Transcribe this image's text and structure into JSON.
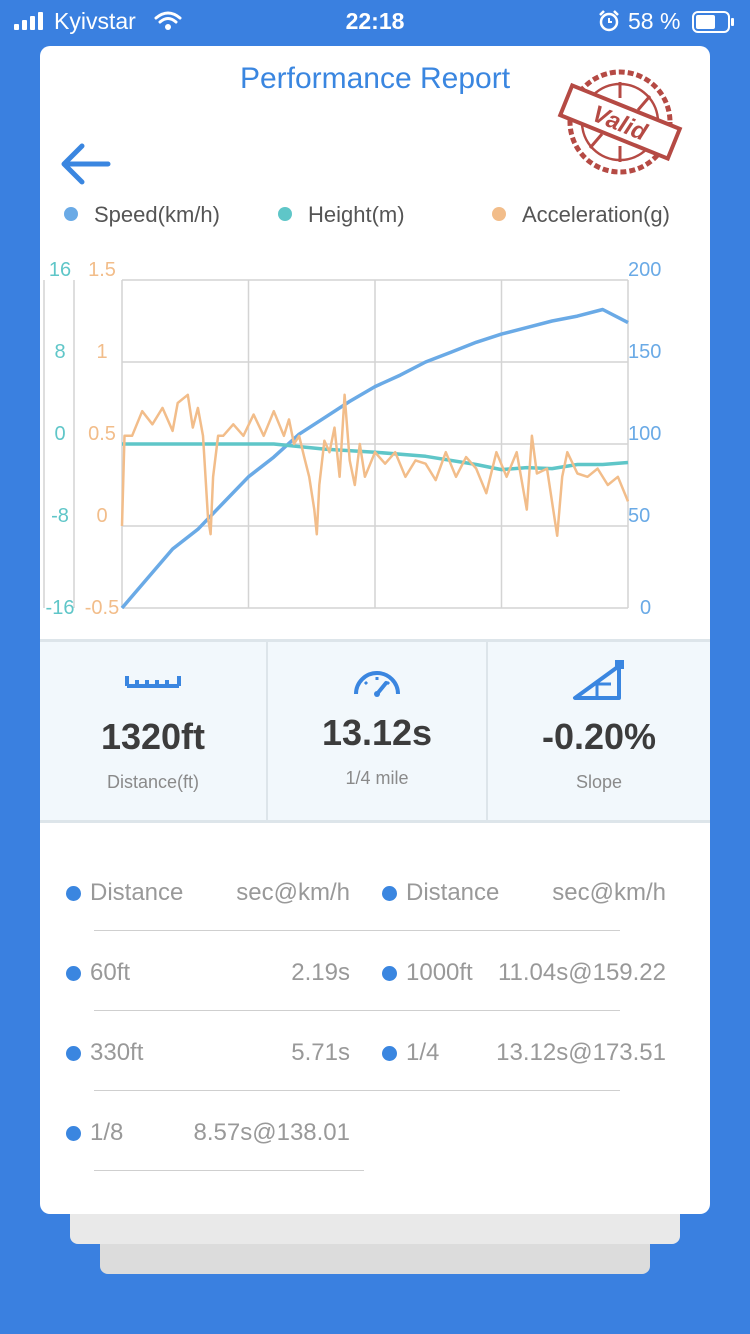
{
  "status_bar": {
    "carrier": "Kyivstar",
    "time": "22:18",
    "battery_percent": "58 %"
  },
  "title": "Performance Report",
  "stamp_text": "Valid",
  "legend": [
    {
      "label": "Speed(km/h)",
      "color": "#6aaae6"
    },
    {
      "label": "Height(m)",
      "color": "#5fc6c8"
    },
    {
      "label": "Acceleration(g)",
      "color": "#f2bd8a"
    }
  ],
  "chart_data": {
    "type": "line",
    "x_range": [
      0,
      100
    ],
    "axes": {
      "height": {
        "ticks": [
          "16",
          "8",
          "0",
          "-8",
          "-16"
        ],
        "range": [
          -16,
          16
        ],
        "color": "#5fc6c8"
      },
      "acceleration": {
        "ticks": [
          "1.5",
          "1",
          "0.5",
          "0",
          "-0.5"
        ],
        "range": [
          -0.5,
          1.5
        ],
        "color": "#f2bd8a"
      },
      "speed": {
        "ticks": [
          "200",
          "150",
          "100",
          "50",
          "0"
        ],
        "range": [
          0,
          200
        ],
        "color": "#6aaae6"
      }
    },
    "grid": true,
    "series": [
      {
        "name": "Speed(km/h)",
        "axis": "speed",
        "color": "#6aaae6",
        "points": [
          [
            0,
            0
          ],
          [
            5,
            18
          ],
          [
            10,
            36
          ],
          [
            15,
            48
          ],
          [
            20,
            64
          ],
          [
            25,
            80
          ],
          [
            30,
            92
          ],
          [
            35,
            106
          ],
          [
            40,
            116
          ],
          [
            45,
            126
          ],
          [
            50,
            135
          ],
          [
            55,
            142
          ],
          [
            60,
            150
          ],
          [
            65,
            156
          ],
          [
            70,
            162
          ],
          [
            75,
            167
          ],
          [
            80,
            171
          ],
          [
            85,
            175
          ],
          [
            90,
            178
          ],
          [
            95,
            182
          ],
          [
            100,
            174
          ]
        ]
      },
      {
        "name": "Height(m)",
        "axis": "height",
        "color": "#5fc6c8",
        "points": [
          [
            0,
            0
          ],
          [
            10,
            0
          ],
          [
            20,
            0
          ],
          [
            30,
            0
          ],
          [
            40,
            -0.5
          ],
          [
            50,
            -0.8
          ],
          [
            60,
            -1.2
          ],
          [
            70,
            -2
          ],
          [
            75,
            -2.5
          ],
          [
            80,
            -2.3
          ],
          [
            85,
            -2.4
          ],
          [
            90,
            -2.0
          ],
          [
            95,
            -2.0
          ],
          [
            100,
            -1.8
          ]
        ]
      },
      {
        "name": "Acceleration(g)",
        "axis": "acceleration",
        "color": "#f2bd8a",
        "points": [
          [
            0,
            0
          ],
          [
            0.5,
            0.55
          ],
          [
            2,
            0.55
          ],
          [
            4,
            0.7
          ],
          [
            6,
            0.62
          ],
          [
            8,
            0.72
          ],
          [
            10,
            0.58
          ],
          [
            11,
            0.75
          ],
          [
            13,
            0.8
          ],
          [
            14,
            0.6
          ],
          [
            15,
            0.72
          ],
          [
            16,
            0.55
          ],
          [
            17,
            0.05
          ],
          [
            17.5,
            -0.05
          ],
          [
            18,
            0.3
          ],
          [
            19,
            0.55
          ],
          [
            20,
            0.55
          ],
          [
            22,
            0.62
          ],
          [
            24,
            0.55
          ],
          [
            26,
            0.68
          ],
          [
            28,
            0.55
          ],
          [
            30,
            0.7
          ],
          [
            32,
            0.55
          ],
          [
            33,
            0.65
          ],
          [
            34,
            0.5
          ],
          [
            35,
            0.55
          ],
          [
            36,
            0.42
          ],
          [
            37,
            0.3
          ],
          [
            38,
            0.1
          ],
          [
            38.5,
            -0.05
          ],
          [
            39,
            0.25
          ],
          [
            40,
            0.52
          ],
          [
            41,
            0.45
          ],
          [
            42,
            0.6
          ],
          [
            43,
            0.3
          ],
          [
            44,
            0.8
          ],
          [
            45,
            0.4
          ],
          [
            46,
            0.25
          ],
          [
            47,
            0.5
          ],
          [
            48,
            0.3
          ],
          [
            50,
            0.45
          ],
          [
            52,
            0.38
          ],
          [
            54,
            0.45
          ],
          [
            56,
            0.3
          ],
          [
            58,
            0.4
          ],
          [
            60,
            0.38
          ],
          [
            62,
            0.28
          ],
          [
            64,
            0.45
          ],
          [
            66,
            0.3
          ],
          [
            68,
            0.42
          ],
          [
            70,
            0.35
          ],
          [
            72,
            0.2
          ],
          [
            74,
            0.45
          ],
          [
            76,
            0.3
          ],
          [
            78,
            0.45
          ],
          [
            80,
            0.1
          ],
          [
            81,
            0.55
          ],
          [
            82,
            0.32
          ],
          [
            84,
            0.35
          ],
          [
            86,
            -0.06
          ],
          [
            87,
            0.3
          ],
          [
            88,
            0.45
          ],
          [
            90,
            0.32
          ],
          [
            92,
            0.3
          ],
          [
            94,
            0.35
          ],
          [
            96,
            0.25
          ],
          [
            98,
            0.3
          ],
          [
            100,
            0.15
          ]
        ]
      }
    ]
  },
  "stats": [
    {
      "value": "1320ft",
      "label": "Distance(ft)",
      "icon": "ruler-icon"
    },
    {
      "value": "13.12s",
      "label": "1/4 mile",
      "icon": "speedometer-icon"
    },
    {
      "value": "-0.20%",
      "label": "Slope",
      "icon": "slope-icon"
    }
  ],
  "table": {
    "header_left": {
      "name": "Distance",
      "value": "sec@km/h"
    },
    "header_right": {
      "name": "Distance",
      "value": "sec@km/h"
    },
    "left_rows": [
      {
        "name": "60ft",
        "value": "2.19s"
      },
      {
        "name": "330ft",
        "value": "5.71s"
      },
      {
        "name": "1/8",
        "value": "8.57s@138.01"
      }
    ],
    "right_rows": [
      {
        "name": "1000ft",
        "value": "11.04s@159.22"
      },
      {
        "name": "1/4",
        "value": "13.12s@173.51"
      }
    ]
  }
}
